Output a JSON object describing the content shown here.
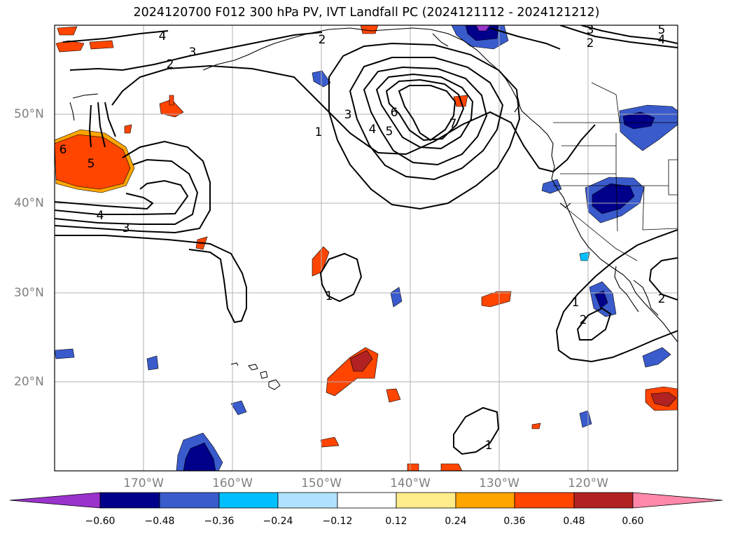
{
  "title": "2024120700 F012 300 hPa PV, IVT Landfall PC (2024121112 - 2024121212)",
  "lat_labels": [
    "50°N",
    "40°N",
    "30°N",
    "20°N"
  ],
  "lon_labels": [
    "170°W",
    "160°W",
    "150°W",
    "140°W",
    "130°W",
    "120°W"
  ],
  "colorbar": {
    "ticks": [
      "−0.60",
      "−0.48",
      "−0.36",
      "−0.24",
      "−0.12",
      "0.12",
      "0.24",
      "0.36",
      "0.48",
      "0.60"
    ],
    "colors": [
      "#9933cc",
      "#00008b",
      "#3a5bcc",
      "#00bfff",
      "#b0e2ff",
      "#ffffff",
      "#ffec8b",
      "#ffa500",
      "#ff4500",
      "#b22222",
      "#ff88aa"
    ]
  },
  "contour_labels": [
    "1",
    "2",
    "3",
    "4",
    "5",
    "6",
    "7"
  ]
}
